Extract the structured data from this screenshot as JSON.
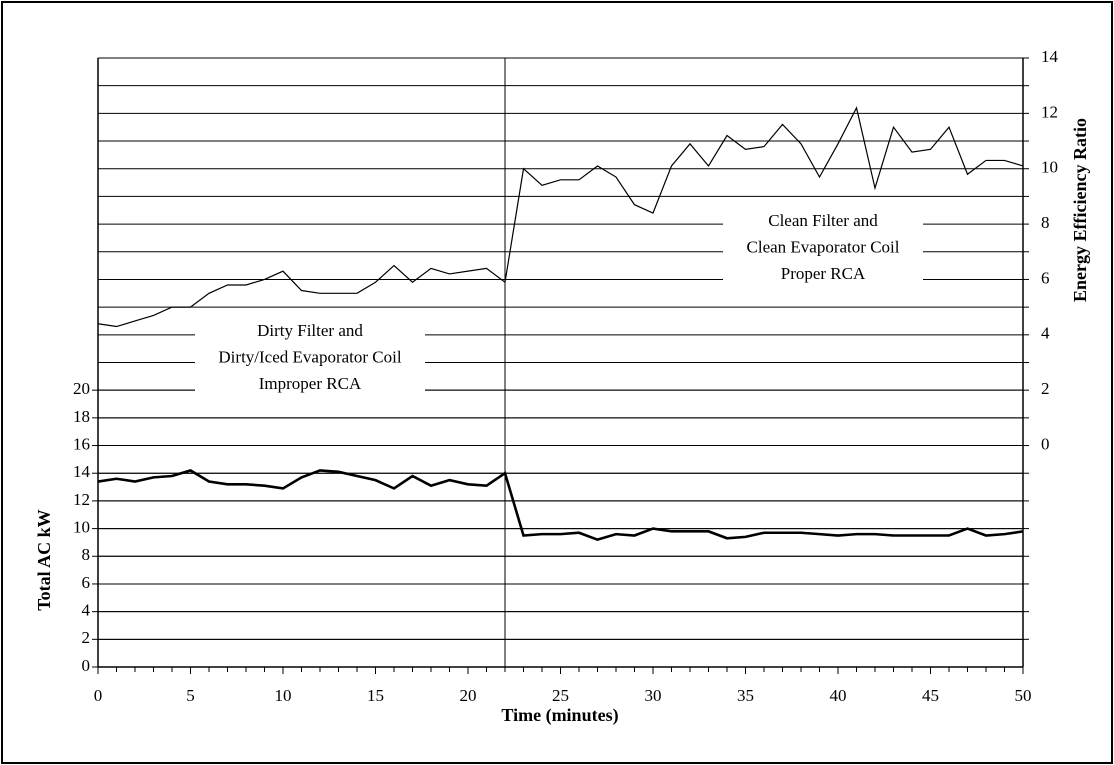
{
  "chart_data": {
    "type": "line",
    "xlabel": "Time (minutes)",
    "ylabel": "Total AC kW",
    "y2label": "Energy Efficiency Ratio",
    "x": [
      0,
      1,
      2,
      3,
      4,
      5,
      6,
      7,
      8,
      9,
      10,
      11,
      12,
      13,
      14,
      15,
      16,
      17,
      18,
      19,
      20,
      21,
      22,
      23,
      24,
      25,
      26,
      27,
      28,
      29,
      30,
      31,
      32,
      33,
      34,
      35,
      36,
      37,
      38,
      39,
      40,
      41,
      42,
      43,
      44,
      45,
      46,
      47,
      48,
      49,
      50
    ],
    "series": [
      {
        "name": "Energy Efficiency Ratio",
        "axis": "y2",
        "color": "#000000",
        "width": 1.2,
        "values": [
          4.4,
          4.3,
          4.5,
          4.7,
          5.0,
          5.0,
          5.5,
          5.8,
          5.8,
          6.0,
          6.3,
          5.6,
          5.5,
          5.5,
          5.5,
          5.9,
          6.5,
          5.9,
          6.4,
          6.2,
          6.3,
          6.4,
          5.9,
          10.0,
          9.4,
          9.6,
          9.6,
          10.1,
          9.7,
          8.7,
          8.4,
          10.1,
          10.9,
          10.1,
          11.2,
          10.7,
          10.8,
          11.6,
          10.9,
          9.7,
          10.9,
          12.2,
          9.3,
          11.5,
          10.6,
          10.7,
          11.5,
          9.8,
          10.3,
          10.3,
          10.1
        ]
      },
      {
        "name": "Total AC kW",
        "axis": "y",
        "color": "#000000",
        "width": 2.6,
        "values": [
          13.4,
          13.6,
          13.4,
          13.7,
          13.8,
          14.2,
          13.4,
          13.2,
          13.2,
          13.1,
          12.9,
          13.7,
          14.2,
          14.1,
          13.8,
          13.5,
          12.9,
          13.8,
          13.1,
          13.5,
          13.2,
          13.1,
          14.0,
          9.5,
          9.6,
          9.6,
          9.7,
          9.2,
          9.6,
          9.5,
          10.0,
          9.8,
          9.8,
          9.8,
          9.3,
          9.4,
          9.7,
          9.7,
          9.7,
          9.6,
          9.5,
          9.6,
          9.6,
          9.5,
          9.5,
          9.5,
          9.5,
          10.0,
          9.5,
          9.6,
          9.8
        ]
      }
    ],
    "xlim": [
      0,
      50
    ],
    "xticks": [
      0,
      5,
      10,
      15,
      20,
      25,
      30,
      35,
      40,
      45,
      50
    ],
    "ylim": [
      0,
      44
    ],
    "yticks": [
      0,
      2,
      4,
      6,
      8,
      10,
      12,
      14,
      16,
      18,
      20
    ],
    "y2lim": [
      -8,
      14
    ],
    "y2ticks": [
      0,
      2,
      4,
      6,
      8,
      10,
      12,
      14
    ],
    "y2minorticks": [
      -7,
      -6,
      -5,
      -4,
      -3,
      -2,
      -1,
      1,
      3,
      5,
      7,
      9,
      11,
      13
    ],
    "grid": true,
    "divider_x": 22,
    "annotations": [
      {
        "lines": [
          "Dirty Filter and",
          "Dirty/Iced Evaporator Coil",
          "Improper RCA"
        ]
      },
      {
        "lines": [
          "Clean Filter and",
          "Clean Evaporator Coil",
          "Proper RCA"
        ]
      }
    ]
  }
}
